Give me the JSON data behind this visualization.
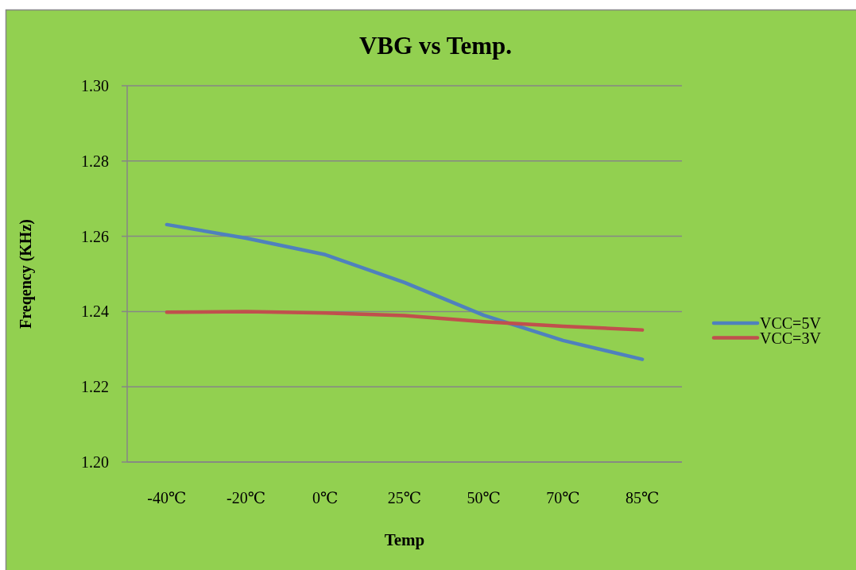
{
  "chart_data": {
    "type": "line",
    "title": "VBG vs Temp.",
    "xlabel": "Temp",
    "ylabel": "Freqency (KHz)",
    "categories": [
      "-40℃",
      "-20℃",
      "0℃",
      "25℃",
      "50℃",
      "70℃",
      "85℃"
    ],
    "series": [
      {
        "name": "VCC=5V",
        "color": "#4f81bd",
        "values": [
          1.2631,
          1.2595,
          1.2551,
          1.2477,
          1.239,
          1.2323,
          1.2273
        ]
      },
      {
        "name": "VCC=3V",
        "color": "#c0504d",
        "values": [
          1.2398,
          1.24,
          1.2396,
          1.2389,
          1.2373,
          1.2361,
          1.2351
        ]
      }
    ],
    "ylim": [
      1.2,
      1.3
    ],
    "yticks": [
      {
        "value": 1.2,
        "label": "1.20"
      },
      {
        "value": 1.22,
        "label": "1.22"
      },
      {
        "value": 1.24,
        "label": "1.24"
      },
      {
        "value": 1.26,
        "label": "1.26"
      },
      {
        "value": 1.28,
        "label": "1.28"
      },
      {
        "value": 1.3,
        "label": "1.30"
      }
    ],
    "grid": "y",
    "legend": "right"
  }
}
